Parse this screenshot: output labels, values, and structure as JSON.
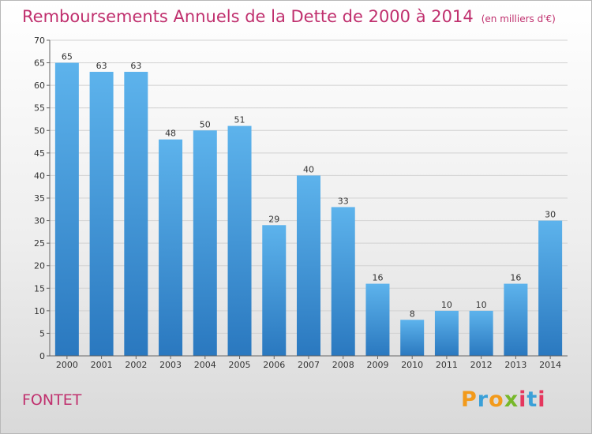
{
  "title": "Remboursements Annuels de la Dette de 2000 à 2014",
  "unit_note": "(en milliers d'€)",
  "town": "FONTET",
  "logo": {
    "letters": [
      "P",
      "r",
      "o",
      "x",
      "i",
      "t",
      "i"
    ],
    "colors": [
      "#f29a1b",
      "#3aa0d8",
      "#f29a1b",
      "#77b82a",
      "#e5375e",
      "#3aa0d8",
      "#e5375e"
    ]
  },
  "chart_data": {
    "type": "bar",
    "title": "Remboursements Annuels de la Dette de 2000 à 2014",
    "xlabel": "",
    "ylabel": "",
    "categories": [
      "2000",
      "2001",
      "2002",
      "2003",
      "2004",
      "2005",
      "2006",
      "2007",
      "2008",
      "2009",
      "2010",
      "2011",
      "2012",
      "2013",
      "2014"
    ],
    "values": [
      65,
      63,
      63,
      48,
      50,
      51,
      29,
      40,
      33,
      16,
      8,
      10,
      10,
      16,
      30
    ],
    "ylim": [
      0,
      70
    ],
    "yticks": [
      0,
      5,
      10,
      15,
      20,
      25,
      30,
      35,
      40,
      45,
      50,
      55,
      60,
      65,
      70
    ],
    "grid": true,
    "bar_color": "#3a92d6"
  }
}
